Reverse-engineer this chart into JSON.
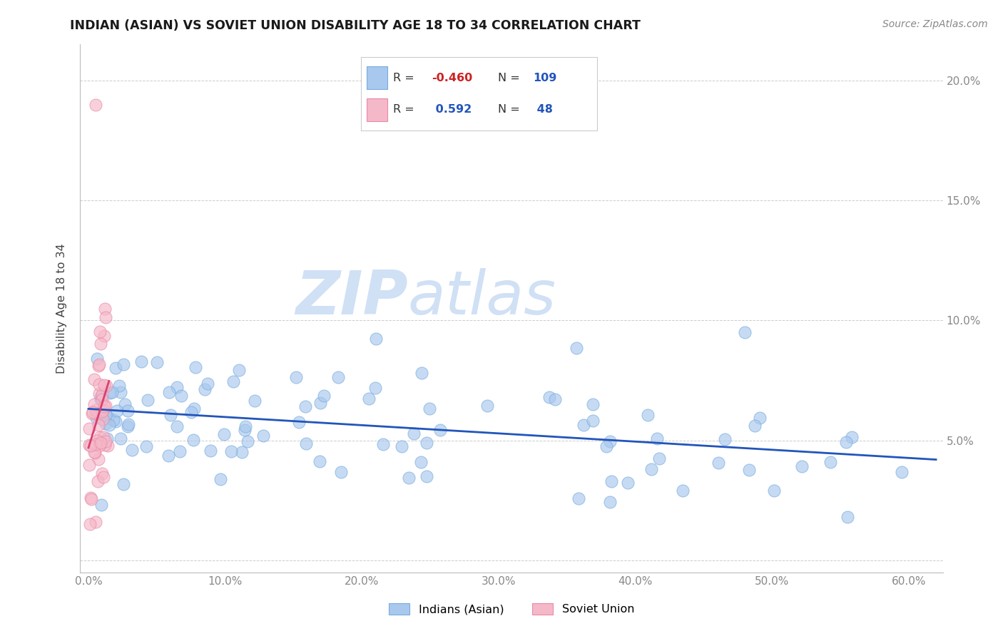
{
  "title": "INDIAN (ASIAN) VS SOVIET UNION DISABILITY AGE 18 TO 34 CORRELATION CHART",
  "source": "Source: ZipAtlas.com",
  "ylabel": "Disability Age 18 to 34",
  "xlim": [
    -0.006,
    0.625
  ],
  "ylim": [
    -0.005,
    0.215
  ],
  "xticks": [
    0.0,
    0.1,
    0.2,
    0.3,
    0.4,
    0.5,
    0.6
  ],
  "xtick_labels": [
    "0.0%",
    "10.0%",
    "20.0%",
    "30.0%",
    "40.0%",
    "50.0%",
    "60.0%"
  ],
  "yticks": [
    0.0,
    0.05,
    0.1,
    0.15,
    0.2
  ],
  "ytick_labels_right": [
    "",
    "5.0%",
    "10.0%",
    "15.0%",
    "20.0%"
  ],
  "blue_scatter_color": "#a8c8ee",
  "blue_edge_color": "#7aabdd",
  "blue_line_color": "#2255bb",
  "pink_scatter_color": "#f5b8c8",
  "pink_edge_color": "#e88aa8",
  "pink_line_solid_color": "#d94070",
  "pink_line_dash_color": "#e0a0b8",
  "grid_color": "#cccccc",
  "legend_label_blue": "Indians (Asian)",
  "legend_label_pink": "Soviet Union",
  "legend_blue_R": "-0.460",
  "legend_blue_N": "109",
  "legend_pink_R": "0.592",
  "legend_pink_N": "48",
  "R_label_color": "#333333",
  "R_neg_color": "#cc2222",
  "R_pos_color": "#2255bb",
  "N_color": "#2255bb",
  "watermark_color": "#d0e0f5",
  "source_color": "#888888",
  "title_color": "#1a1a1a",
  "tick_color": "#888888"
}
